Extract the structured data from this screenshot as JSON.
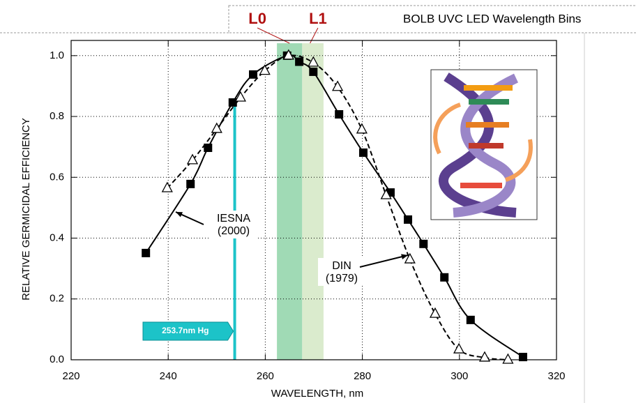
{
  "chart_data": {
    "type": "line",
    "banner": "BOLB UVC LED Wavelength Bins",
    "xlabel": "WAVELENGTH, nm",
    "ylabel": "RELATIVE GERMICIDAL EFFICIENCY",
    "xlim": [
      220,
      320
    ],
    "xticks": [
      220,
      240,
      260,
      280,
      300,
      320
    ],
    "ylim": [
      0,
      1.05
    ],
    "yticks": [
      {
        "value": 0,
        "label": "0.0"
      },
      0.2,
      0.4,
      0.6,
      0.8,
      {
        "value": 1,
        "label": "1.0"
      }
    ],
    "grid": true,
    "bands": [
      {
        "label": "L0",
        "xlim": [
          262.4,
          267.6
        ],
        "color": "#8fd3a8"
      },
      {
        "label": "L1",
        "xlim": [
          267.6,
          272
        ],
        "color": "#d3e8c4"
      }
    ],
    "hg_line": {
      "x": 253.7,
      "top": 0.86,
      "label": "253.7nm Hg",
      "color": "#1cc3c8"
    },
    "series": [
      {
        "label_lines": [
          "IESNA",
          "(2000)"
        ],
        "marker": "square",
        "dash": false,
        "color": "#000000",
        "x": [
          235.4,
          244.6,
          248.2,
          253.3,
          257.5,
          264.5,
          267,
          269.9,
          275.2,
          280.2,
          285.8,
          289.4,
          292.6,
          296.9,
          302.3,
          313.1
        ],
        "values": [
          0.351,
          0.578,
          0.697,
          0.846,
          0.938,
          1.0,
          0.98,
          0.947,
          0.807,
          0.681,
          0.55,
          0.461,
          0.381,
          0.271,
          0.131,
          0.009
        ]
      },
      {
        "label_lines": [
          "DIN",
          "(1979)"
        ],
        "marker": "triangle",
        "dash": true,
        "color": "#000000",
        "x": [
          239.8,
          245,
          250,
          254.9,
          259.9,
          264.8,
          269.9,
          274.9,
          279.9,
          284.9,
          289.8,
          295,
          299.9,
          305.2,
          310
        ],
        "values": [
          0.564,
          0.656,
          0.759,
          0.862,
          0.95,
          1.0,
          0.977,
          0.897,
          0.757,
          0.541,
          0.33,
          0.151,
          0.034,
          0.007,
          0
        ]
      }
    ]
  }
}
